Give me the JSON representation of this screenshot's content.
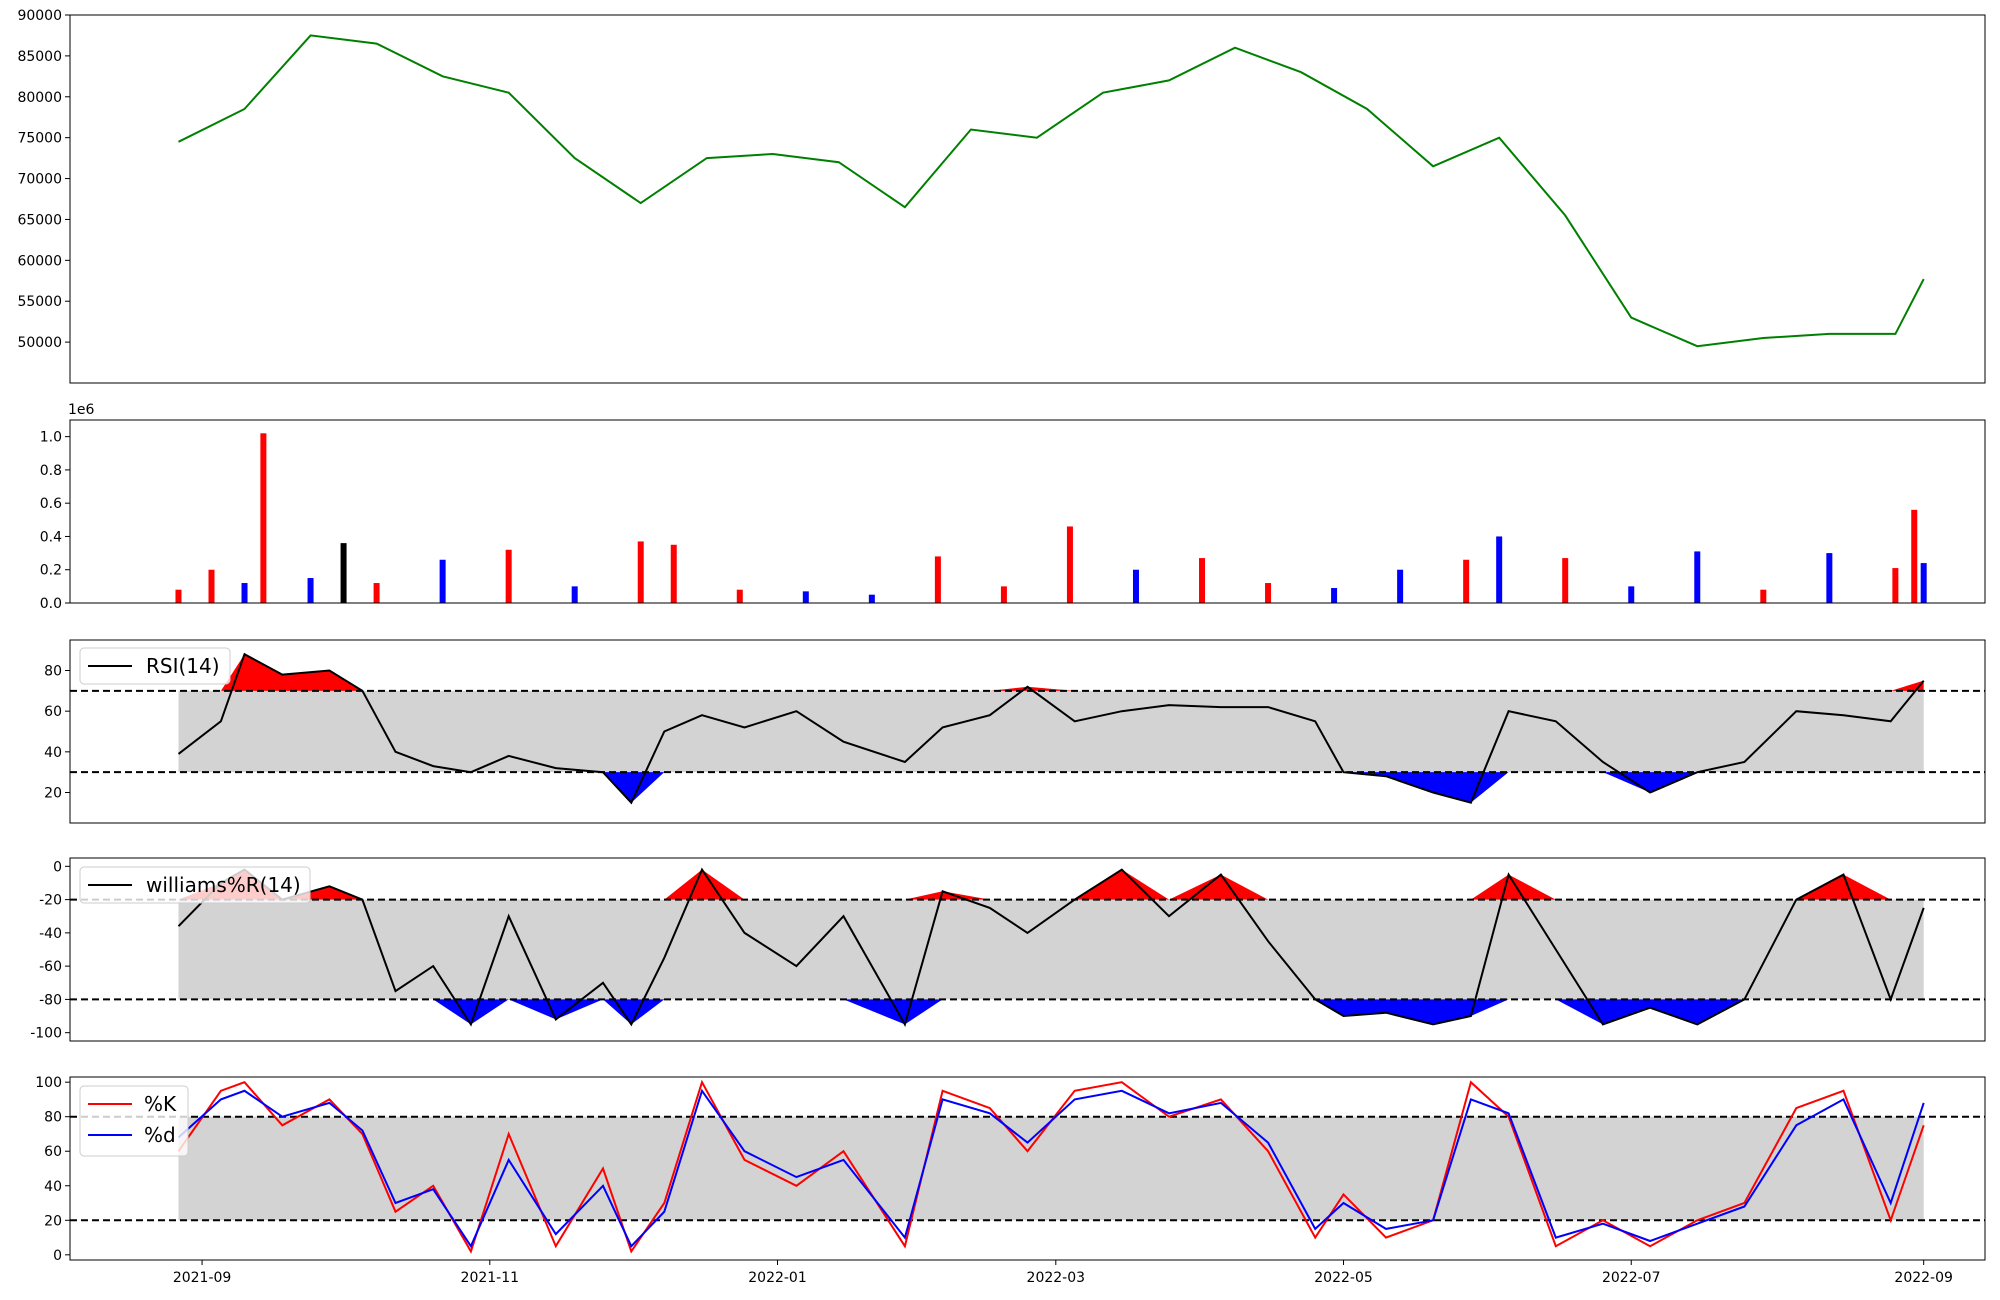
{
  "chart_data": [
    {
      "type": "line",
      "panel": "price",
      "ylim": [
        45000,
        90000
      ],
      "yticks": [
        50000,
        55000,
        60000,
        65000,
        70000,
        75000,
        80000,
        85000,
        90000
      ],
      "series_color": "#008000",
      "x": [
        "2021-08-27",
        "2021-09-10",
        "2021-09-24",
        "2021-10-08",
        "2021-10-22",
        "2021-11-05",
        "2021-11-19",
        "2021-12-03",
        "2021-12-17",
        "2021-12-31",
        "2022-01-14",
        "2022-01-28",
        "2022-02-11",
        "2022-02-25",
        "2022-03-11",
        "2022-03-25",
        "2022-04-08",
        "2022-04-22",
        "2022-05-06",
        "2022-05-20",
        "2022-06-03",
        "2022-06-17",
        "2022-07-01",
        "2022-07-15",
        "2022-07-29",
        "2022-08-12",
        "2022-08-26",
        "2022-09-01"
      ],
      "values": [
        74500,
        78500,
        87500,
        86500,
        82500,
        80500,
        72500,
        67000,
        72500,
        73000,
        72000,
        66500,
        76000,
        75000,
        80500,
        82000,
        86000,
        83000,
        78500,
        71500,
        75000,
        65500,
        53000,
        49500,
        50500,
        51000,
        51000,
        57700
      ]
    },
    {
      "type": "bar",
      "panel": "volume",
      "ylim": [
        0,
        1.1
      ],
      "yticks": [
        0.0,
        0.2,
        0.4,
        0.6,
        0.8,
        1.0
      ],
      "offset_label": "1e6",
      "colors": {
        "up": "#ff0000",
        "down": "#0000ff",
        "flat": "#000000"
      },
      "x": [
        "2021-08-27",
        "2021-09-03",
        "2021-09-10",
        "2021-09-14",
        "2021-09-24",
        "2021-10-01",
        "2021-10-08",
        "2021-10-22",
        "2021-11-05",
        "2021-11-19",
        "2021-12-03",
        "2021-12-10",
        "2021-12-24",
        "2022-01-07",
        "2022-01-21",
        "2022-02-04",
        "2022-02-18",
        "2022-03-04",
        "2022-03-18",
        "2022-04-01",
        "2022-04-15",
        "2022-04-29",
        "2022-05-13",
        "2022-05-27",
        "2022-06-03",
        "2022-06-17",
        "2022-07-01",
        "2022-07-15",
        "2022-07-29",
        "2022-08-12",
        "2022-08-26",
        "2022-08-30",
        "2022-09-01"
      ],
      "values": [
        0.08,
        0.2,
        0.12,
        1.02,
        0.15,
        0.36,
        0.12,
        0.26,
        0.32,
        0.1,
        0.37,
        0.35,
        0.08,
        0.07,
        0.05,
        0.28,
        0.1,
        0.46,
        0.2,
        0.27,
        0.12,
        0.09,
        0.2,
        0.26,
        0.4,
        0.27,
        0.1,
        0.31,
        0.08,
        0.3,
        0.21,
        0.56,
        0.24
      ],
      "direction": [
        "up",
        "up",
        "down",
        "up",
        "down",
        "flat",
        "up",
        "down",
        "up",
        "down",
        "up",
        "up",
        "up",
        "down",
        "down",
        "up",
        "up",
        "up",
        "down",
        "up",
        "up",
        "down",
        "down",
        "up",
        "down",
        "up",
        "down",
        "down",
        "up",
        "down",
        "up",
        "up",
        "down"
      ]
    },
    {
      "type": "line",
      "panel": "rsi",
      "legend": [
        "RSI(14)"
      ],
      "ylim": [
        5,
        95
      ],
      "yticks": [
        20,
        40,
        60,
        80
      ],
      "thresholds": [
        30,
        70
      ],
      "colors": {
        "line": "#000000",
        "over": "#ff0000",
        "under": "#0000ff",
        "band": "#d3d3d3"
      },
      "x": [
        "2021-08-27",
        "2021-09-05",
        "2021-09-10",
        "2021-09-18",
        "2021-09-28",
        "2021-10-05",
        "2021-10-12",
        "2021-10-20",
        "2021-10-28",
        "2021-11-05",
        "2021-11-15",
        "2021-11-25",
        "2021-12-01",
        "2021-12-08",
        "2021-12-16",
        "2021-12-25",
        "2022-01-05",
        "2022-01-15",
        "2022-01-28",
        "2022-02-05",
        "2022-02-15",
        "2022-02-23",
        "2022-03-05",
        "2022-03-15",
        "2022-03-25",
        "2022-04-05",
        "2022-04-15",
        "2022-04-25",
        "2022-05-01",
        "2022-05-10",
        "2022-05-20",
        "2022-05-28",
        "2022-06-05",
        "2022-06-15",
        "2022-06-25",
        "2022-07-05",
        "2022-07-15",
        "2022-07-25",
        "2022-08-05",
        "2022-08-15",
        "2022-08-25",
        "2022-09-01"
      ],
      "values": [
        39,
        55,
        88,
        78,
        80,
        70,
        40,
        33,
        30,
        38,
        32,
        30,
        15,
        50,
        58,
        52,
        60,
        45,
        35,
        52,
        58,
        72,
        55,
        60,
        63,
        62,
        62,
        55,
        30,
        28,
        20,
        15,
        60,
        55,
        35,
        20,
        30,
        35,
        60,
        58,
        55,
        75
      ]
    },
    {
      "type": "line",
      "panel": "williams",
      "legend": [
        "williams%R(14)"
      ],
      "ylim": [
        -105,
        5
      ],
      "yticks": [
        0,
        -20,
        -40,
        -60,
        -80,
        -100
      ],
      "thresholds": [
        -20,
        -80
      ],
      "colors": {
        "line": "#000000",
        "over": "#ff0000",
        "under": "#0000ff",
        "band": "#d3d3d3"
      },
      "x": [
        "2021-08-27",
        "2021-09-05",
        "2021-09-10",
        "2021-09-18",
        "2021-09-28",
        "2021-10-05",
        "2021-10-12",
        "2021-10-20",
        "2021-10-28",
        "2021-11-05",
        "2021-11-15",
        "2021-11-25",
        "2021-12-01",
        "2021-12-08",
        "2021-12-16",
        "2021-12-25",
        "2022-01-05",
        "2022-01-15",
        "2022-01-28",
        "2022-02-05",
        "2022-02-15",
        "2022-02-23",
        "2022-03-05",
        "2022-03-15",
        "2022-03-25",
        "2022-04-05",
        "2022-04-15",
        "2022-04-25",
        "2022-05-01",
        "2022-05-10",
        "2022-05-20",
        "2022-05-28",
        "2022-06-05",
        "2022-06-15",
        "2022-06-25",
        "2022-07-05",
        "2022-07-15",
        "2022-07-25",
        "2022-08-05",
        "2022-08-15",
        "2022-08-25",
        "2022-09-01"
      ],
      "values": [
        -36,
        -10,
        -2,
        -20,
        -12,
        -20,
        -75,
        -60,
        -95,
        -30,
        -92,
        -70,
        -95,
        -55,
        -2,
        -40,
        -60,
        -30,
        -95,
        -15,
        -25,
        -40,
        -20,
        -2,
        -30,
        -5,
        -45,
        -80,
        -90,
        -88,
        -95,
        -90,
        -5,
        -50,
        -95,
        -85,
        -95,
        -80,
        -20,
        -5,
        -80,
        -25
      ]
    },
    {
      "type": "line",
      "panel": "stochastic",
      "legend": [
        "%K",
        "%d"
      ],
      "ylim": [
        -3,
        103
      ],
      "yticks": [
        0,
        20,
        40,
        60,
        80,
        100
      ],
      "thresholds": [
        20,
        80
      ],
      "colors": {
        "k": "#ff0000",
        "d": "#0000ff",
        "band": "#d3d3d3"
      },
      "xticks": [
        "2021-09",
        "2021-11",
        "2022-01",
        "2022-03",
        "2022-05",
        "2022-07",
        "2022-09"
      ],
      "x": [
        "2021-08-27",
        "2021-09-05",
        "2021-09-10",
        "2021-09-18",
        "2021-09-28",
        "2021-10-05",
        "2021-10-12",
        "2021-10-20",
        "2021-10-28",
        "2021-11-05",
        "2021-11-15",
        "2021-11-25",
        "2021-12-01",
        "2021-12-08",
        "2021-12-16",
        "2021-12-25",
        "2022-01-05",
        "2022-01-15",
        "2022-01-28",
        "2022-02-05",
        "2022-02-15",
        "2022-02-23",
        "2022-03-05",
        "2022-03-15",
        "2022-03-25",
        "2022-04-05",
        "2022-04-15",
        "2022-04-25",
        "2022-05-01",
        "2022-05-10",
        "2022-05-20",
        "2022-05-28",
        "2022-06-05",
        "2022-06-15",
        "2022-06-25",
        "2022-07-05",
        "2022-07-15",
        "2022-07-25",
        "2022-08-05",
        "2022-08-15",
        "2022-08-25",
        "2022-09-01"
      ],
      "series": [
        {
          "name": "%K",
          "values": [
            60,
            95,
            100,
            75,
            90,
            70,
            25,
            40,
            2,
            70,
            5,
            50,
            2,
            30,
            100,
            55,
            40,
            60,
            5,
            95,
            85,
            60,
            95,
            100,
            80,
            90,
            60,
            10,
            35,
            10,
            20,
            100,
            80,
            5,
            20,
            5,
            20,
            30,
            85,
            95,
            20,
            75
          ]
        },
        {
          "name": "%d",
          "values": [
            68,
            90,
            95,
            80,
            88,
            72,
            30,
            38,
            5,
            55,
            12,
            40,
            5,
            25,
            95,
            60,
            45,
            55,
            10,
            90,
            82,
            65,
            90,
            95,
            82,
            88,
            65,
            15,
            30,
            15,
            20,
            90,
            82,
            10,
            18,
            8,
            18,
            28,
            75,
            90,
            30,
            88
          ]
        }
      ]
    }
  ]
}
